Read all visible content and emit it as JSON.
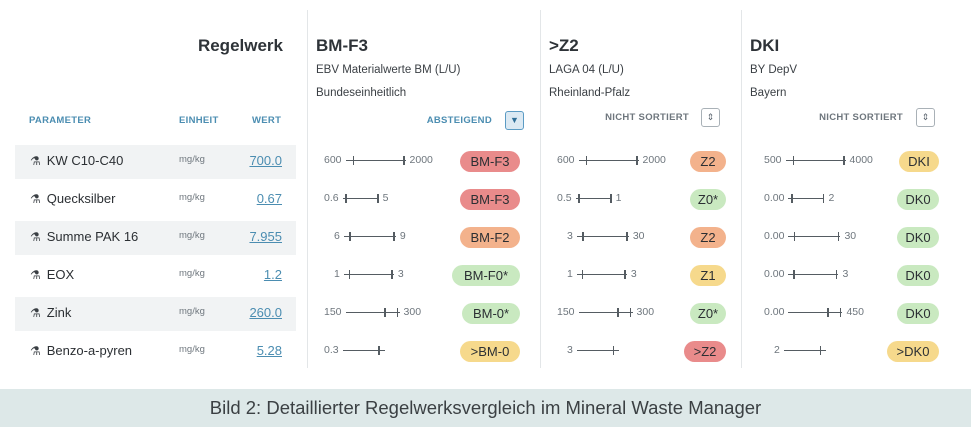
{
  "regelwerk_title": "Regelwerk",
  "headers": {
    "parameter": "PARAMETER",
    "einheit": "EINHEIT",
    "wert": "WERT"
  },
  "columns": [
    {
      "title": "BM-F3",
      "subtitle": "EBV Materialwerte BM (L/U)",
      "region": "Bundeseinheitlich",
      "sort_label": "ABSTEIGEND",
      "sort_active": true
    },
    {
      "title": ">Z2",
      "subtitle": "LAGA 04 (L/U)",
      "region": "Rheinland-Pfalz",
      "sort_label": "NICHT SORTIERT",
      "sort_active": false
    },
    {
      "title": "DKI",
      "subtitle": "BY DepV",
      "region": "Bayern",
      "sort_label": "NICHT SORTIERT",
      "sort_active": false
    }
  ],
  "rows": [
    {
      "param": "KW C10-C40",
      "unit": "mg/kg",
      "value": "700.0",
      "cells": [
        {
          "min": "600",
          "max": "2000",
          "badge": "BM-F3",
          "color": "red"
        },
        {
          "min": "600",
          "max": "2000",
          "badge": "Z2",
          "color": "orange"
        },
        {
          "min": "500",
          "max": "4000",
          "badge": "DKI",
          "color": "yellow"
        }
      ]
    },
    {
      "param": "Quecksilber",
      "unit": "mg/kg",
      "value": "0.67",
      "cells": [
        {
          "min": "0.6",
          "max": "5",
          "badge": "BM-F3",
          "color": "red"
        },
        {
          "min": "0.5",
          "max": "1",
          "badge": "Z0*",
          "color": "green"
        },
        {
          "min": "0.00",
          "max": "2",
          "badge": "DK0",
          "color": "green"
        }
      ]
    },
    {
      "param": "Summe PAK 16",
      "unit": "mg/kg",
      "value": "7.955",
      "cells": [
        {
          "min": "6",
          "max": "9",
          "badge": "BM-F2",
          "color": "orange"
        },
        {
          "min": "3",
          "max": "30",
          "badge": "Z2",
          "color": "orange"
        },
        {
          "min": "0.00",
          "max": "30",
          "badge": "DK0",
          "color": "green"
        }
      ]
    },
    {
      "param": "EOX",
      "unit": "mg/kg",
      "value": "1.2",
      "cells": [
        {
          "min": "1",
          "max": "3",
          "badge": "BM-F0*",
          "color": "green"
        },
        {
          "min": "1",
          "max": "3",
          "badge": "Z1",
          "color": "yellow"
        },
        {
          "min": "0.00",
          "max": "3",
          "badge": "DK0",
          "color": "green"
        }
      ]
    },
    {
      "param": "Zink",
      "unit": "mg/kg",
      "value": "260.0",
      "cells": [
        {
          "min": "150",
          "max": "300",
          "badge": "BM-0*",
          "color": "green"
        },
        {
          "min": "150",
          "max": "300",
          "badge": "Z0*",
          "color": "green"
        },
        {
          "min": "0.00",
          "max": "450",
          "badge": "DK0",
          "color": "green"
        }
      ]
    },
    {
      "param": "Benzo-a-pyren",
      "unit": "mg/kg",
      "value": "5.28",
      "cells": [
        {
          "min": "0.3",
          "max": "",
          "badge": ">BM-0",
          "color": "yellow"
        },
        {
          "min": "3",
          "max": "",
          "badge": ">Z2",
          "color": "red"
        },
        {
          "min": "2",
          "max": "",
          "badge": ">DK0",
          "color": "yellow"
        }
      ]
    }
  ],
  "caption": "Bild 2: Detaillierter Regelwerksvergleich im Mineral Waste Manager",
  "colors": {
    "accent": "#4b8db1",
    "red": "#e98b8b",
    "orange": "#f3b28c",
    "yellow": "#f6d98c",
    "green": "#c9e9c0"
  },
  "icons": {
    "param": "flask-icon",
    "sort_active": "chevron-down-icon",
    "sort_inactive": "sort-updown-icon"
  }
}
